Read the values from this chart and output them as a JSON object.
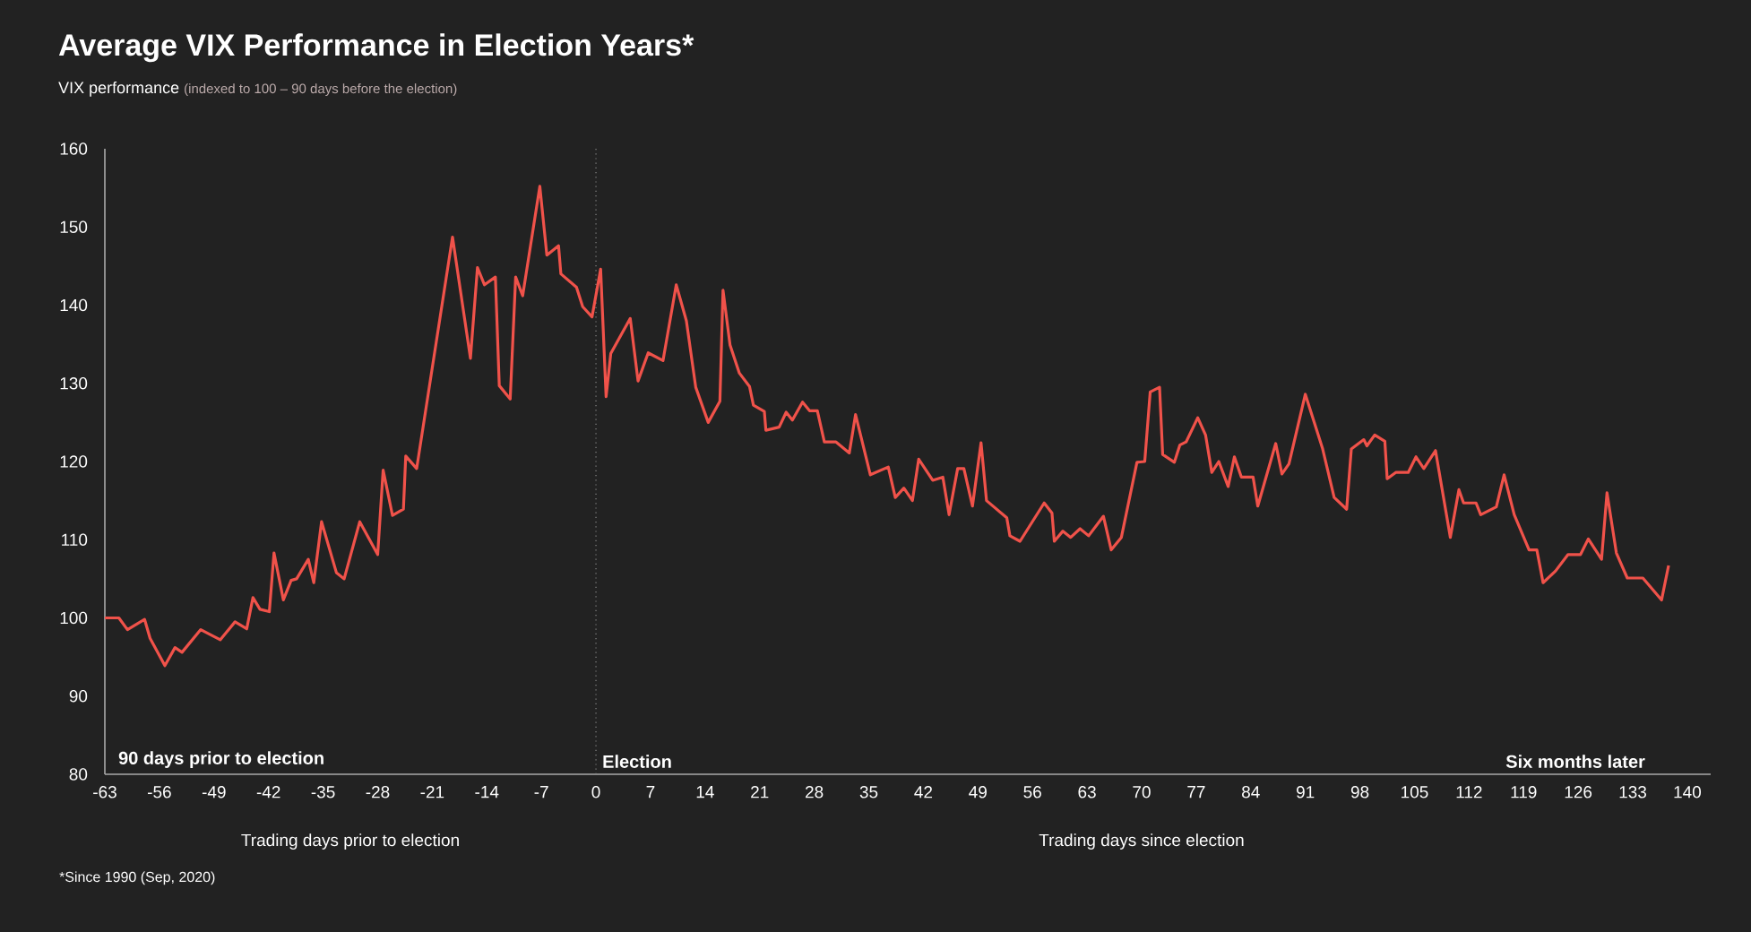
{
  "chart_data": {
    "type": "line",
    "title": "Average VIX Performance in Election Years*",
    "ylabel": "VIX performance",
    "subtitle": "(indexed to 100 – 90 days before the election)",
    "annotations": [
      "90 days prior to election",
      "Six months later",
      "Trading days prior to election",
      "Trading days since election",
      "*Since 1990 (Sep, 2020)"
    ],
    "color": "#f0524a",
    "x": [
      -63,
      -61.2,
      -60.1,
      -57.9,
      -57.2,
      -55.3,
      -54,
      -53.1,
      -50.7,
      -48.2,
      -46.3,
      -44.8,
      -44,
      -43.1,
      -41.9,
      -41.3,
      -40.1,
      -39.1,
      -38.4,
      -36.9,
      -36.2,
      -35.2,
      -33.3,
      -32.3,
      -30.3,
      -28,
      -27.3,
      -26.1,
      -24.7,
      -24.4,
      -23,
      -18.4,
      -16.1,
      -15.2,
      -14.3,
      -12.9,
      -12.4,
      -11,
      -10.3,
      -9.4,
      -7.2,
      -6.3,
      -4.8,
      -4.5,
      -2.5,
      -1.7,
      -0.5,
      0.6,
      1.3,
      1.9,
      4.4,
      5.4,
      6.7,
      8.6,
      10.3,
      11.6,
      12.8,
      14.4,
      15.9,
      16.3,
      17.2,
      18.4,
      19.7,
      20.2,
      21.6,
      21.8,
      23.5,
      24.4,
      25.2,
      26.5,
      27.4,
      28.4,
      29.3,
      30.8,
      32.5,
      33.3,
      35.2,
      37.5,
      38.4,
      39.5,
      40.6,
      41.4,
      43.2,
      44.5,
      45.3,
      46.4,
      47.2,
      48.3,
      49.4,
      50.1,
      52.7,
      53.1,
      54.4,
      57.5,
      58.5,
      58.8,
      59.9,
      60.9,
      62.1,
      63.2,
      65.1,
      66.1,
      67.4,
      69.4,
      70.4,
      71.1,
      72.3,
      72.7,
      74.2,
      74.9,
      75.7,
      77.2,
      78.2,
      79,
      79.9,
      81.1,
      81.9,
      82.8,
      84.3,
      84.9,
      87.2,
      88,
      88.9,
      91,
      93.2,
      94.7,
      96.3,
      96.9,
      98.5,
      98.9,
      99.9,
      101.2,
      101.5,
      102.6,
      104.2,
      105.2,
      106.2,
      107.7,
      109.6,
      110.7,
      111.3,
      112.9,
      113.5,
      115.5,
      116.5,
      117.8,
      119.7,
      120.7,
      121.5,
      123.1,
      124.7,
      126.3,
      127.3,
      129,
      129.7,
      130.9,
      132.3,
      134.3,
      136.7,
      137.6
    ],
    "values": [
      100,
      100,
      98.5,
      99.8,
      97.4,
      93.9,
      96.2,
      95.6,
      98.5,
      97.2,
      99.5,
      98.6,
      102.6,
      101.1,
      100.8,
      108.3,
      102.3,
      104.8,
      105,
      107.5,
      104.5,
      112.3,
      105.8,
      105,
      112.3,
      108.1,
      118.9,
      113.1,
      113.9,
      120.7,
      119.1,
      148.7,
      133.2,
      144.8,
      142.6,
      143.6,
      129.7,
      128,
      143.6,
      141.2,
      155.2,
      146.4,
      147.6,
      144,
      142.3,
      139.8,
      138.5,
      144.6,
      128.3,
      133.8,
      138.3,
      130.3,
      133.9,
      132.9,
      142.6,
      138,
      129.5,
      125,
      127.7,
      141.9,
      134.9,
      131.3,
      129.6,
      127.2,
      126.4,
      124,
      124.4,
      126.3,
      125.3,
      127.6,
      126.5,
      126.5,
      122.5,
      122.5,
      121.1,
      126,
      118.3,
      119.3,
      115.4,
      116.6,
      115,
      120.3,
      117.6,
      118,
      113.2,
      119.1,
      119.1,
      114.3,
      122.4,
      115,
      112.8,
      110.5,
      109.8,
      114.7,
      113.4,
      109.8,
      111.1,
      110.3,
      111.4,
      110.5,
      113,
      108.7,
      110.3,
      119.9,
      120,
      128.9,
      129.5,
      120.9,
      119.9,
      122.1,
      122.5,
      125.6,
      123.4,
      118.6,
      120,
      116.8,
      120.6,
      118,
      118,
      114.3,
      122.3,
      118.4,
      119.7,
      128.6,
      121.7,
      115.4,
      113.9,
      121.6,
      122.8,
      122,
      123.4,
      122.6,
      117.8,
      118.6,
      118.6,
      120.6,
      119.1,
      121.4,
      110.3,
      116.4,
      114.7,
      114.7,
      113.2,
      114.2,
      118.3,
      113.2,
      108.7,
      108.7,
      104.5,
      106,
      108.1,
      108.1,
      110.1,
      107.5,
      116,
      108.3,
      105.1,
      105.1,
      102.3,
      106.7
    ],
    "xlim": [
      -63,
      143
    ],
    "ylim": [
      80,
      160
    ],
    "xticks": [
      -63,
      -56,
      -49,
      -42,
      -35,
      -28,
      -21,
      -14,
      -7,
      0,
      7,
      14,
      21,
      28,
      35,
      42,
      49,
      56,
      63,
      70,
      77,
      84,
      91,
      98,
      105,
      112,
      119,
      126,
      133,
      140
    ],
    "yticks": [
      80,
      90,
      100,
      110,
      120,
      130,
      140,
      150,
      160
    ],
    "ref_lines": [
      {
        "axis": "x",
        "value": 0,
        "label": "Election",
        "color": "#888888",
        "line_style": "dotted"
      }
    ]
  }
}
